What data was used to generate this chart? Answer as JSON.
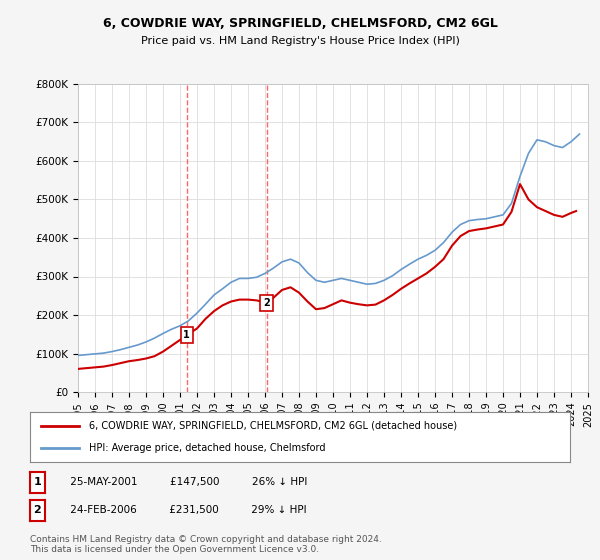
{
  "title": "6, COWDRIE WAY, SPRINGFIELD, CHELMSFORD, CM2 6GL",
  "subtitle": "Price paid vs. HM Land Registry's House Price Index (HPI)",
  "legend_line1": "6, COWDRIE WAY, SPRINGFIELD, CHELMSFORD, CM2 6GL (detached house)",
  "legend_line2": "HPI: Average price, detached house, Chelmsford",
  "footer": "Contains HM Land Registry data © Crown copyright and database right 2024.\nThis data is licensed under the Open Government Licence v3.0.",
  "sale_points": [
    {
      "label": "1",
      "date": "25-MAY-2001",
      "price": 147500,
      "x": 2001.4,
      "pct": "26% ↓ HPI"
    },
    {
      "label": "2",
      "date": "24-FEB-2006",
      "price": 231500,
      "x": 2006.1,
      "pct": "29% ↓ HPI"
    }
  ],
  "vline_color": "#ff6666",
  "vline_style": "--",
  "red_line_color": "#cc0000",
  "blue_line_color": "#6699cc",
  "marker_box_color": "#cc0000",
  "ylim": [
    0,
    800000
  ],
  "xlim": [
    1995,
    2025
  ],
  "hpi_data": {
    "x": [
      1995,
      1995.5,
      1996,
      1996.5,
      1997,
      1997.5,
      1998,
      1998.5,
      1999,
      1999.5,
      2000,
      2000.5,
      2001,
      2001.5,
      2002,
      2002.5,
      2003,
      2003.5,
      2004,
      2004.5,
      2005,
      2005.5,
      2006,
      2006.5,
      2007,
      2007.5,
      2008,
      2008.5,
      2009,
      2009.5,
      2010,
      2010.5,
      2011,
      2011.5,
      2012,
      2012.5,
      2013,
      2013.5,
      2014,
      2014.5,
      2015,
      2015.5,
      2016,
      2016.5,
      2017,
      2017.5,
      2018,
      2018.5,
      2019,
      2019.5,
      2020,
      2020.5,
      2021,
      2021.5,
      2022,
      2022.5,
      2023,
      2023.5,
      2024,
      2024.5
    ],
    "y": [
      95000,
      97000,
      99000,
      101000,
      105000,
      110000,
      116000,
      122000,
      130000,
      140000,
      152000,
      163000,
      172000,
      185000,
      205000,
      228000,
      252000,
      268000,
      285000,
      295000,
      295000,
      298000,
      308000,
      322000,
      338000,
      345000,
      335000,
      310000,
      290000,
      285000,
      290000,
      295000,
      290000,
      285000,
      280000,
      282000,
      290000,
      302000,
      318000,
      332000,
      345000,
      355000,
      368000,
      388000,
      415000,
      435000,
      445000,
      448000,
      450000,
      455000,
      460000,
      490000,
      560000,
      620000,
      655000,
      650000,
      640000,
      635000,
      650000,
      670000
    ]
  },
  "price_data": {
    "x": [
      1995,
      1995.5,
      1996,
      1996.5,
      1997,
      1997.5,
      1998,
      1998.5,
      1999,
      1999.5,
      2000,
      2000.5,
      2001.4,
      2002,
      2002.5,
      2003,
      2003.5,
      2004,
      2004.5,
      2005,
      2005.5,
      2006.1,
      2006.5,
      2007,
      2007.5,
      2008,
      2008.5,
      2009,
      2009.5,
      2010,
      2010.5,
      2011,
      2011.5,
      2012,
      2012.5,
      2013,
      2013.5,
      2014,
      2014.5,
      2015,
      2015.5,
      2016,
      2016.5,
      2017,
      2017.5,
      2018,
      2018.5,
      2019,
      2019.5,
      2020,
      2020.5,
      2021,
      2021.5,
      2022,
      2022.5,
      2023,
      2023.5,
      2024,
      2024.3
    ],
    "y": [
      60000,
      62000,
      64000,
      66000,
      70000,
      75000,
      80000,
      83000,
      87000,
      93000,
      105000,
      120000,
      147500,
      165000,
      190000,
      210000,
      225000,
      235000,
      240000,
      240000,
      238000,
      231500,
      245000,
      265000,
      272000,
      258000,
      235000,
      215000,
      218000,
      228000,
      238000,
      232000,
      228000,
      225000,
      227000,
      238000,
      252000,
      268000,
      282000,
      295000,
      308000,
      325000,
      345000,
      380000,
      405000,
      418000,
      422000,
      425000,
      430000,
      435000,
      468000,
      540000,
      500000,
      480000,
      470000,
      460000,
      455000,
      465000,
      470000
    ]
  },
  "yticks": [
    0,
    100000,
    200000,
    300000,
    400000,
    500000,
    600000,
    700000,
    800000
  ],
  "ytick_labels": [
    "£0",
    "£100K",
    "£200K",
    "£300K",
    "£400K",
    "£500K",
    "£600K",
    "£700K",
    "£800K"
  ],
  "xtick_years": [
    1995,
    1996,
    1997,
    1998,
    1999,
    2000,
    2001,
    2002,
    2003,
    2004,
    2005,
    2006,
    2007,
    2008,
    2009,
    2010,
    2011,
    2012,
    2013,
    2014,
    2015,
    2016,
    2017,
    2018,
    2019,
    2020,
    2021,
    2022,
    2023,
    2024,
    2025
  ],
  "bg_color": "#f5f5f5",
  "plot_bg_color": "#ffffff"
}
